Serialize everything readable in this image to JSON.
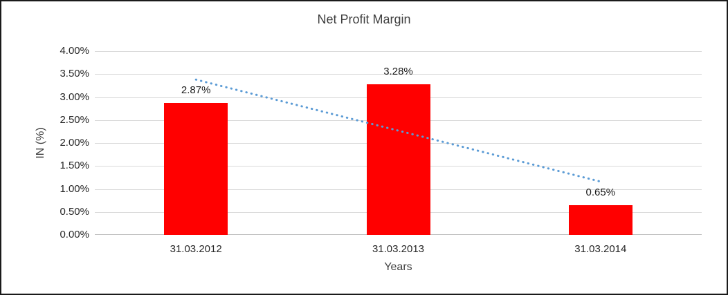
{
  "chart_data": {
    "type": "bar",
    "title": "Net Profit Margin",
    "categories": [
      "31.03.2012",
      "31.03.2013",
      "31.03.2014"
    ],
    "values": [
      2.87,
      3.28,
      0.65
    ],
    "value_labels": [
      "2.87%",
      "3.28%",
      "0.65%"
    ],
    "xlabel": "Years",
    "ylabel": "IN (%)",
    "ylim": [
      0,
      4
    ],
    "ytick_step": 0.5,
    "ytick_labels": [
      "0.00%",
      "0.50%",
      "1.00%",
      "1.50%",
      "2.00%",
      "2.50%",
      "3.00%",
      "3.50%",
      "4.00%"
    ],
    "grid": true,
    "legend": "none",
    "bar_color": "#ff0000",
    "trendline": {
      "style": "dotted",
      "color": "#5b9bd5",
      "start_value": 3.38,
      "end_value": 1.16
    }
  }
}
